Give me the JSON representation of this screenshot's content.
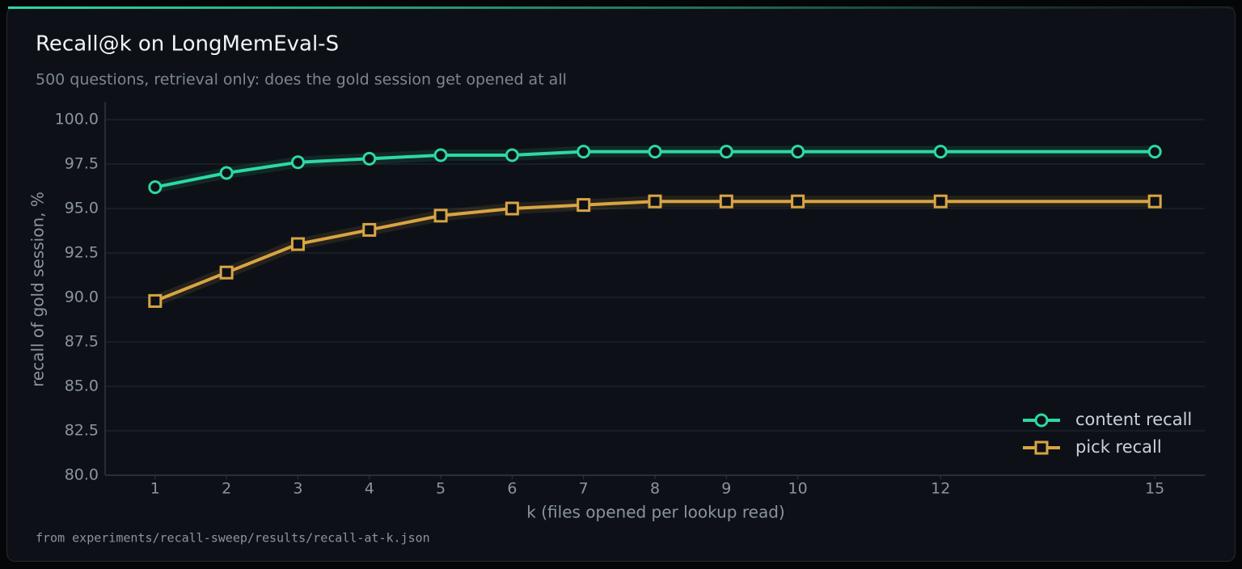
{
  "chart_data": {
    "type": "line",
    "title": "Recall@k on LongMemEval-S",
    "subtitle": "500 questions, retrieval only: does the gold session get opened at all",
    "x_label": "k (files opened per lookup read)",
    "y_label": "recall of gold session, %",
    "footnote": "from experiments/recall-sweep/results/recall-at-k.json",
    "x": [
      1,
      2,
      3,
      4,
      5,
      6,
      7,
      8,
      9,
      10,
      12,
      15
    ],
    "series": [
      {
        "name": "content recall",
        "color": "#2fd8a3",
        "marker": "circle",
        "values": [
          96.2,
          97.0,
          97.6,
          97.8,
          98.0,
          98.0,
          98.2,
          98.2,
          98.2,
          98.2,
          98.2,
          98.2
        ]
      },
      {
        "name": "pick recall",
        "color": "#d9a444",
        "marker": "square",
        "values": [
          89.8,
          91.4,
          93.0,
          93.8,
          94.6,
          95.0,
          95.2,
          95.4,
          95.4,
          95.4,
          95.4,
          95.4
        ]
      }
    ],
    "xlim": [
      0.3,
      15.7
    ],
    "xticks": [
      1,
      2,
      3,
      4,
      5,
      6,
      7,
      8,
      9,
      10,
      12,
      15
    ],
    "ylim": [
      80,
      100
    ],
    "yticks": [
      {
        "value": 80,
        "label": "80.0"
      },
      82.5,
      {
        "value": 85,
        "label": "85.0"
      },
      87.5,
      {
        "value": 90,
        "label": "90.0"
      },
      92.5,
      {
        "value": 95,
        "label": "95.0"
      },
      97.5,
      {
        "value": 100,
        "label": "100.0"
      }
    ],
    "grid": true,
    "legend": "lower right"
  }
}
